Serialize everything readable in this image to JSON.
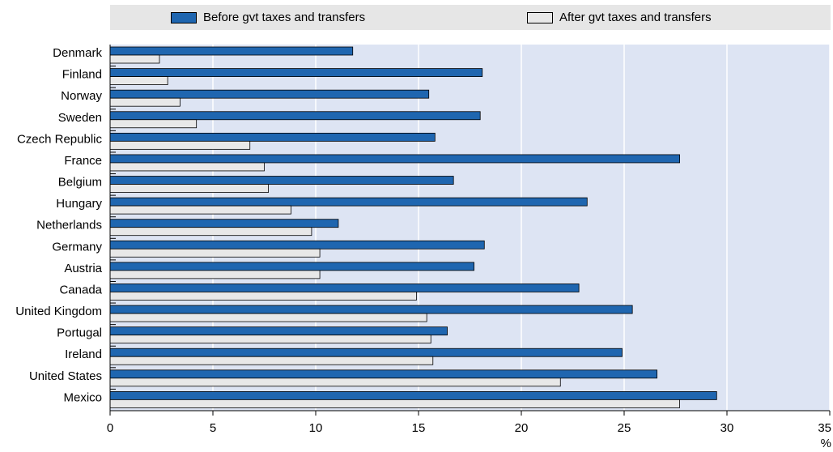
{
  "chart_data": {
    "type": "bar",
    "orientation": "horizontal",
    "categories": [
      "Denmark",
      "Finland",
      "Norway",
      "Sweden",
      "Czech Republic",
      "France",
      "Belgium",
      "Hungary",
      "Netherlands",
      "Germany",
      "Austria",
      "Canada",
      "United Kingdom",
      "Portugal",
      "Ireland",
      "United States",
      "Mexico"
    ],
    "series": [
      {
        "name": "Before gvt taxes and transfers",
        "color": "#1f66b0",
        "values": [
          11.8,
          18.1,
          15.5,
          18.0,
          15.8,
          27.7,
          16.7,
          23.2,
          11.1,
          18.2,
          17.7,
          22.8,
          25.4,
          16.4,
          24.9,
          26.6,
          29.5
        ]
      },
      {
        "name": "After gvt taxes and transfers",
        "color": "#e8e8e8",
        "values": [
          2.4,
          2.8,
          3.4,
          4.2,
          6.8,
          7.5,
          7.7,
          8.8,
          9.8,
          10.2,
          10.2,
          14.9,
          15.4,
          15.6,
          15.7,
          21.9,
          27.7
        ]
      }
    ],
    "xlim": [
      0,
      35
    ],
    "xticks": [
      0,
      5,
      10,
      15,
      20,
      25,
      30,
      35
    ],
    "xunit": "%",
    "grid": true,
    "legend": "top",
    "plot_background": "#dde4f3"
  }
}
